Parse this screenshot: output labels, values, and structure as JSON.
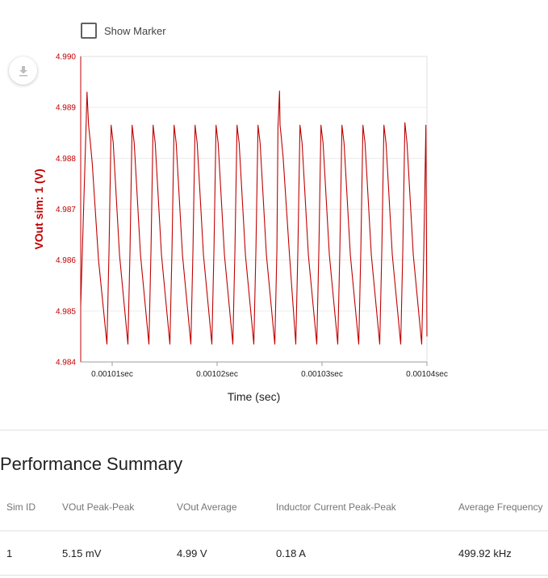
{
  "marker": {
    "label": "Show Marker",
    "checked": false
  },
  "download": {
    "icon": "download-icon"
  },
  "chart_data": {
    "type": "line",
    "xlabel": "Time (sec)",
    "ylabel": "VOut sim: 1 (V)",
    "xlim": [
      0.001007,
      0.00104
    ],
    "ylim": [
      4.984,
      4.99
    ],
    "x_ticks": [
      0.00101,
      0.00102,
      0.00103,
      0.00104
    ],
    "x_tick_labels": [
      "0.00101sec",
      "0.00102sec",
      "0.00103sec",
      "0.00104sec"
    ],
    "y_ticks": [
      4.984,
      4.985,
      4.986,
      4.987,
      4.988,
      4.989,
      4.99
    ],
    "y_tick_labels": [
      "4.984",
      "4.985",
      "4.986",
      "4.987",
      "4.988",
      "4.989",
      "4.990"
    ],
    "grid": true,
    "line_color": "#c00000",
    "series": [
      {
        "x": [
          0.001007,
          0.0010075,
          0.0010076,
          0.00100775,
          0.0010078,
          0.0010079,
          0.0010081,
          0.0010087,
          0.0010095,
          0.0010097,
          0.0010099,
          0.0010101,
          0.0010107,
          0.0010115,
          0.0010117,
          0.0010119,
          0.0010121,
          0.0010127,
          0.0010135,
          0.0010137,
          0.0010139,
          0.0010141,
          0.0010147,
          0.0010155,
          0.0010157,
          0.0010159,
          0.0010161,
          0.0010167,
          0.0010175,
          0.0010177,
          0.0010179,
          0.0010181,
          0.0010187,
          0.0010195,
          0.0010197,
          0.0010199,
          0.0010201,
          0.0010207,
          0.0010215,
          0.0010217,
          0.0010219,
          0.0010221,
          0.0010227,
          0.0010235,
          0.0010237,
          0.0010239,
          0.0010241,
          0.0010247,
          0.0010255,
          0.0010257,
          0.0010258,
          0.00102595,
          0.001026,
          0.0010261,
          0.0010263,
          0.0010269,
          0.0010275,
          0.0010277,
          0.0010279,
          0.0010281,
          0.0010287,
          0.0010295,
          0.0010297,
          0.0010299,
          0.0010301,
          0.0010307,
          0.0010315,
          0.0010317,
          0.0010319,
          0.0010321,
          0.0010327,
          0.0010335,
          0.0010337,
          0.0010339,
          0.0010341,
          0.0010347,
          0.0010355,
          0.0010357,
          0.0010359,
          0.0010361,
          0.0010367,
          0.0010375,
          0.0010377,
          0.0010379,
          0.0010381,
          0.0010387,
          0.0010395,
          0.0010397,
          0.0010399,
          0.00104
        ],
        "y": [
          4.9851,
          4.98855,
          4.9893,
          4.98865,
          4.98855,
          4.98835,
          4.9879,
          4.986,
          4.98435,
          4.9862,
          4.98865,
          4.9883,
          4.9861,
          4.98435,
          4.9862,
          4.98865,
          4.9883,
          4.9861,
          4.98435,
          4.9862,
          4.98865,
          4.9883,
          4.9861,
          4.98435,
          4.9862,
          4.98865,
          4.9883,
          4.9861,
          4.98435,
          4.9862,
          4.98865,
          4.9883,
          4.9861,
          4.98435,
          4.9862,
          4.98865,
          4.9883,
          4.9861,
          4.98435,
          4.9862,
          4.98865,
          4.9883,
          4.9861,
          4.98435,
          4.9862,
          4.98865,
          4.9883,
          4.9861,
          4.98435,
          4.9862,
          4.9886,
          4.98932,
          4.98865,
          4.98845,
          4.988,
          4.9861,
          4.98435,
          4.9862,
          4.98865,
          4.9883,
          4.9861,
          4.98435,
          4.9862,
          4.98865,
          4.9883,
          4.9861,
          4.98435,
          4.9862,
          4.98865,
          4.9883,
          4.9861,
          4.98435,
          4.9862,
          4.98865,
          4.9883,
          4.9861,
          4.98435,
          4.9862,
          4.98865,
          4.9883,
          4.9861,
          4.98435,
          4.9862,
          4.9887,
          4.9883,
          4.9861,
          4.98435,
          4.9862,
          4.98865,
          4.9845
        ]
      }
    ]
  },
  "summary": {
    "title": "Performance Summary",
    "columns": [
      "Sim ID",
      "VOut Peak-Peak",
      "VOut Average",
      "Inductor Current Peak-Peak",
      "Average Frequency"
    ],
    "rows": [
      [
        "1",
        "5.15 mV",
        "4.99 V",
        "0.18 A",
        "499.92 kHz"
      ]
    ]
  }
}
